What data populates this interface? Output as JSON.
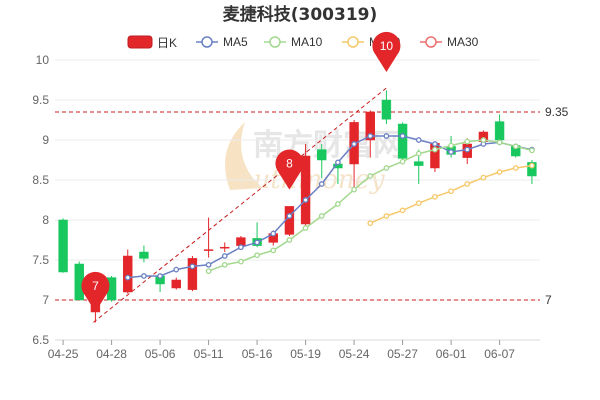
{
  "chart_data": {
    "type": "candlestick",
    "title": "麦捷科技(300319)",
    "watermark": "南方财富网",
    "watermark_sub": "outhmoney",
    "ylim": [
      6.5,
      10
    ],
    "y_ticks": [
      "6.5",
      "7",
      "7.5",
      "8",
      "8.5",
      "9",
      "9.5",
      "10"
    ],
    "x_tick_labels": [
      "04-25",
      "04-28",
      "05-06",
      "05-11",
      "05-16",
      "05-19",
      "05-24",
      "05-27",
      "06-01",
      "06-07"
    ],
    "x_tick_indexes": [
      0,
      3,
      6,
      9,
      12,
      15,
      18,
      21,
      24,
      27
    ],
    "legend": [
      {
        "name": "日K",
        "color": "#e3262a",
        "kind": "candle"
      },
      {
        "name": "MA5",
        "color": "#6a80c4",
        "kind": "line"
      },
      {
        "name": "MA10",
        "color": "#a3d88f",
        "kind": "line"
      },
      {
        "name": "MA20",
        "color": "#f5c96a",
        "kind": "line"
      },
      {
        "name": "MA30",
        "color": "#ef6f6f",
        "kind": "line"
      }
    ],
    "colors": {
      "up": "#e3262a",
      "down": "#18c85e",
      "ref": "#c81e1e",
      "pin": "#e3262a",
      "axis": "#d9d9d9",
      "grid": "#ebebeb"
    },
    "candles": [
      {
        "o": 8.0,
        "h": 8.02,
        "l": 7.34,
        "c": 7.35
      },
      {
        "o": 7.45,
        "h": 7.48,
        "l": 7.0,
        "c": 7.0
      },
      {
        "o": 6.85,
        "h": 7.35,
        "l": 6.72,
        "c": 7.33
      },
      {
        "o": 7.28,
        "h": 7.3,
        "l": 6.98,
        "c": 7.0
      },
      {
        "o": 7.1,
        "h": 7.63,
        "l": 7.08,
        "c": 7.55
      },
      {
        "o": 7.6,
        "h": 7.68,
        "l": 7.47,
        "c": 7.52
      },
      {
        "o": 7.3,
        "h": 7.32,
        "l": 7.1,
        "c": 7.2
      },
      {
        "o": 7.15,
        "h": 7.28,
        "l": 7.13,
        "c": 7.25
      },
      {
        "o": 7.13,
        "h": 7.55,
        "l": 7.11,
        "c": 7.52
      },
      {
        "o": 7.62,
        "h": 8.03,
        "l": 7.53,
        "c": 7.63
      },
      {
        "o": 7.66,
        "h": 7.72,
        "l": 7.6,
        "c": 7.66
      },
      {
        "o": 7.68,
        "h": 7.8,
        "l": 7.66,
        "c": 7.78
      },
      {
        "o": 7.77,
        "h": 7.97,
        "l": 7.66,
        "c": 7.68
      },
      {
        "o": 7.72,
        "h": 7.87,
        "l": 7.68,
        "c": 7.83
      },
      {
        "o": 7.82,
        "h": 8.17,
        "l": 7.8,
        "c": 8.17
      },
      {
        "o": 7.95,
        "h": 8.95,
        "l": 7.9,
        "c": 8.8
      },
      {
        "o": 8.88,
        "h": 8.95,
        "l": 8.52,
        "c": 8.75
      },
      {
        "o": 8.7,
        "h": 8.72,
        "l": 8.45,
        "c": 8.65
      },
      {
        "o": 8.7,
        "h": 9.25,
        "l": 8.38,
        "c": 9.22
      },
      {
        "o": 9.0,
        "h": 9.37,
        "l": 8.78,
        "c": 9.35
      },
      {
        "o": 9.5,
        "h": 9.62,
        "l": 9.2,
        "c": 9.26
      },
      {
        "o": 9.2,
        "h": 9.22,
        "l": 8.75,
        "c": 8.77
      },
      {
        "o": 8.73,
        "h": 8.88,
        "l": 8.45,
        "c": 8.68
      },
      {
        "o": 8.65,
        "h": 8.98,
        "l": 8.6,
        "c": 8.96
      },
      {
        "o": 8.92,
        "h": 9.05,
        "l": 8.78,
        "c": 8.82
      },
      {
        "o": 8.78,
        "h": 9.02,
        "l": 8.7,
        "c": 8.95
      },
      {
        "o": 8.98,
        "h": 9.12,
        "l": 8.95,
        "c": 9.1
      },
      {
        "o": 9.23,
        "h": 9.32,
        "l": 8.98,
        "c": 9.0
      },
      {
        "o": 8.93,
        "h": 8.95,
        "l": 8.78,
        "c": 8.8
      },
      {
        "o": 8.72,
        "h": 8.75,
        "l": 8.45,
        "c": 8.55
      }
    ],
    "ma5": [
      null,
      null,
      null,
      null,
      7.28,
      7.3,
      7.3,
      7.38,
      7.42,
      7.44,
      7.55,
      7.66,
      7.72,
      7.83,
      8.05,
      8.25,
      8.45,
      8.72,
      8.95,
      9.05,
      9.05,
      9.05,
      9.0,
      8.95,
      8.85,
      8.88,
      8.95,
      8.97,
      8.92,
      8.88
    ],
    "ma10": [
      null,
      null,
      null,
      null,
      null,
      null,
      null,
      null,
      null,
      7.36,
      7.44,
      7.48,
      7.56,
      7.62,
      7.75,
      7.9,
      8.05,
      8.2,
      8.38,
      8.55,
      8.65,
      8.73,
      8.83,
      8.88,
      8.93,
      8.98,
      9.0,
      8.97,
      8.92,
      8.87
    ],
    "ma20": [
      null,
      null,
      null,
      null,
      null,
      null,
      null,
      null,
      null,
      null,
      null,
      null,
      null,
      null,
      null,
      null,
      null,
      null,
      null,
      7.96,
      8.05,
      8.12,
      8.21,
      8.29,
      8.36,
      8.45,
      8.53,
      8.6,
      8.65,
      8.68
    ],
    "ma30": [],
    "ref_lines": [
      {
        "value": 9.35,
        "label": "9.35"
      },
      {
        "value": 7,
        "label": "7"
      }
    ],
    "pins": [
      {
        "index": 2,
        "value": 6.85,
        "label": "7"
      },
      {
        "index": 14,
        "value": 8.38,
        "label": "8"
      },
      {
        "index": 20,
        "value": 9.85,
        "label": "10"
      }
    ],
    "trend_line": {
      "from_index": 2,
      "from_value": 6.72,
      "to_index": 20,
      "to_value": 9.65
    }
  }
}
